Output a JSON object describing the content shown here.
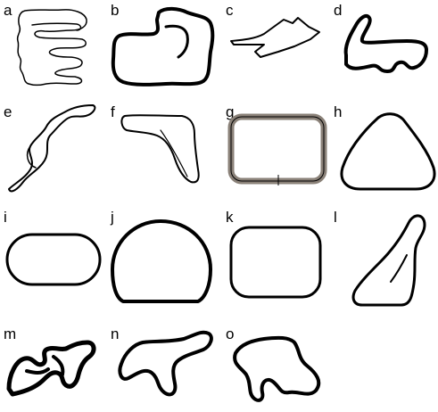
{
  "figure": {
    "panels": [
      {
        "label": "a",
        "kind": "race-track-outline"
      },
      {
        "label": "b",
        "kind": "race-track-outline"
      },
      {
        "label": "c",
        "kind": "race-track-outline"
      },
      {
        "label": "d",
        "kind": "race-track-outline"
      },
      {
        "label": "e",
        "kind": "race-track-outline"
      },
      {
        "label": "f",
        "kind": "race-track-outline"
      },
      {
        "label": "g",
        "kind": "race-track-outline",
        "stroke_color": "#8a8178"
      },
      {
        "label": "h",
        "kind": "race-track-outline"
      },
      {
        "label": "i",
        "kind": "race-track-outline"
      },
      {
        "label": "j",
        "kind": "race-track-outline"
      },
      {
        "label": "k",
        "kind": "race-track-outline"
      },
      {
        "label": "l",
        "kind": "race-track-outline"
      },
      {
        "label": "m",
        "kind": "race-track-outline"
      },
      {
        "label": "n",
        "kind": "race-track-outline"
      },
      {
        "label": "o",
        "kind": "race-track-outline"
      }
    ],
    "colors": {
      "track": "#000000",
      "background": "#ffffff",
      "track_g": "#8a8178"
    }
  }
}
